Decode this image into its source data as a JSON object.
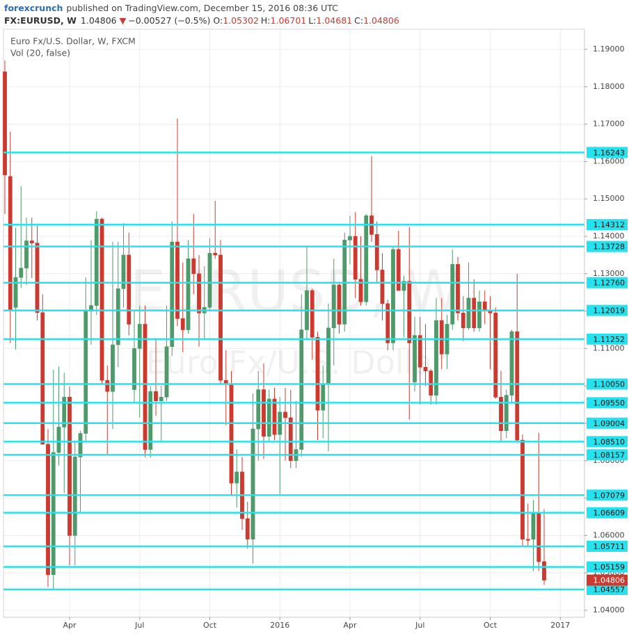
{
  "chart_data": {
    "type": "candlestick",
    "publisher": "forexcrunch",
    "published": "published on TradingView.com, December 15, 2016 08:36 UTC",
    "symbol": "FX:EURUSD, W",
    "change_arrow": "▼",
    "change": "−0.00527 (−0.5%)",
    "ohlc_labels": [
      "O:",
      "H:",
      "L:",
      "C:"
    ],
    "legend": [
      "Euro Fx/U.S. Dollar, W, FXCM",
      "Vol (20, false)"
    ],
    "watermark": [
      "EURUSD, W",
      "Euro Fx/U.S. Dollar"
    ],
    "up_color": "#4e9a6a",
    "down_color": "#cc3a2f",
    "level_color": "#26e2ee",
    "grid": true,
    "categories": [
      null,
      null,
      null,
      null,
      null,
      null,
      null,
      null,
      null,
      null,
      null,
      null,
      "Apr",
      null,
      null,
      null,
      null,
      null,
      null,
      null,
      null,
      null,
      null,
      null,
      null,
      "Jul",
      null,
      null,
      null,
      null,
      null,
      null,
      null,
      null,
      null,
      null,
      null,
      null,
      "Oct",
      null,
      null,
      null,
      null,
      null,
      null,
      null,
      null,
      null,
      null,
      null,
      null,
      "2016",
      null,
      null,
      null,
      null,
      null,
      null,
      null,
      null,
      null,
      null,
      null,
      null,
      "Apr",
      null,
      null,
      null,
      null,
      null,
      null,
      null,
      null,
      null,
      null,
      null,
      null,
      "Jul",
      null,
      null,
      null,
      null,
      null,
      null,
      null,
      null,
      null,
      null,
      null,
      null,
      "Oct",
      null,
      null,
      null,
      null,
      null,
      null,
      null,
      null,
      null,
      null,
      null,
      null,
      "2017"
    ],
    "open": [
      1.184,
      1.156,
      1.121,
      1.129,
      1.1315,
      1.1388,
      1.1382,
      1.1196,
      1.0844,
      1.0495,
      1.0822,
      1.089,
      1.097,
      1.06,
      1.081,
      1.0873,
      1.12,
      1.1215,
      1.1446,
      1.1015,
      1.0985,
      1.111,
      1.126,
      1.135,
      1.099,
      1.11,
      1.1165,
      1.083,
      1.0985,
      1.096,
      1.097,
      1.1105,
      1.1385,
      1.118,
      1.115,
      1.134,
      1.13,
      1.1195,
      1.121,
      1.1355,
      1.135,
      1.1015,
      1.1005,
      1.074,
      1.077,
      1.0645,
      1.059,
      1.0885,
      1.099,
      1.0865,
      1.0965,
      1.087,
      1.093,
      1.0915,
      1.08,
      1.083,
      1.115,
      1.1255,
      1.113,
      1.0935,
      1.1005,
      1.1155,
      1.127,
      1.1165,
      1.139,
      1.14,
      1.1285,
      1.1225,
      1.1455,
      1.1405,
      1.131,
      1.122,
      1.1115,
      1.1365,
      1.1255,
      1.128,
      1.101,
      1.1135,
      1.105,
      1.104,
      1.0975,
      1.1175,
      1.1085,
      1.1165,
      1.1325,
      1.1195,
      1.1155,
      1.1235,
      1.1155,
      1.1225,
      1.12,
      1.1195,
      1.097,
      1.088,
      1.0975,
      1.1145,
      1.0855,
      1.059,
      1.059,
      1.066,
      1.05302,
      null,
      null,
      null
    ],
    "high": [
      1.187,
      1.168,
      1.1423,
      1.1534,
      1.145,
      1.145,
      1.1428,
      1.1245,
      1.0885,
      1.1043,
      1.1052,
      1.1035,
      1.0998,
      1.0849,
      1.088,
      1.129,
      1.139,
      1.1467,
      1.145,
      1.1055,
      1.1385,
      1.1385,
      1.1435,
      1.141,
      1.12,
      1.1215,
      1.1215,
      1.1,
      1.1128,
      1.1,
      1.1215,
      1.144,
      1.1715,
      1.133,
      1.139,
      1.146,
      1.135,
      1.132,
      1.1395,
      1.1495,
      1.139,
      1.1095,
      1.104,
      1.083,
      1.081,
      1.069,
      1.098,
      1.104,
      1.106,
      1.099,
      1.0995,
      1.097,
      1.0995,
      1.099,
      1.096,
      1.1245,
      1.1375,
      1.126,
      1.1145,
      1.1055,
      1.122,
      1.134,
      1.1275,
      1.141,
      1.1455,
      1.1465,
      1.14,
      1.146,
      1.1615,
      1.144,
      1.1355,
      1.123,
      1.1375,
      1.1415,
      1.1295,
      1.1425,
      1.1185,
      1.1185,
      1.1165,
      1.1045,
      1.1235,
      1.1235,
      1.119,
      1.1365,
      1.1345,
      1.124,
      1.133,
      1.1285,
      1.1255,
      1.1255,
      1.124,
      1.121,
      1.104,
      1.099,
      1.115,
      1.13,
      1.087,
      1.0685,
      1.0695,
      1.0875,
      1.06701,
      null,
      null,
      null
    ],
    "low": [
      1.146,
      1.1115,
      1.1097,
      1.1262,
      1.127,
      1.1288,
      1.1175,
      1.0844,
      1.0462,
      1.0457,
      1.0787,
      1.0713,
      1.052,
      1.052,
      1.066,
      1.085,
      1.111,
      1.119,
      1.1005,
      1.0818,
      1.0885,
      1.105,
      1.121,
      1.1135,
      1.0955,
      1.0915,
      1.081,
      1.0808,
      1.092,
      1.085,
      1.096,
      1.108,
      1.116,
      1.109,
      1.114,
      1.1245,
      1.1105,
      1.1125,
      1.12,
      1.134,
      1.1005,
      1.0895,
      1.0705,
      1.0675,
      1.0615,
      1.0565,
      1.0525,
      1.08,
      1.0805,
      1.085,
      1.0855,
      1.071,
      1.08,
      1.078,
      1.078,
      1.081,
      1.1125,
      1.107,
      1.0855,
      1.086,
      1.0825,
      1.1055,
      1.114,
      1.1145,
      1.1325,
      1.1235,
      1.1215,
      1.1215,
      1.1385,
      1.1275,
      1.1175,
      1.1095,
      1.1095,
      1.1255,
      1.113,
      1.091,
      1.0985,
      1.095,
      1.1,
      1.095,
      1.095,
      1.1045,
      1.1045,
      1.115,
      1.1175,
      1.112,
      1.115,
      1.1145,
      1.1145,
      1.1165,
      1.1045,
      1.0965,
      1.085,
      1.086,
      1.0955,
      1.085,
      1.057,
      1.057,
      1.0505,
      1.0505,
      1.04681,
      null,
      null,
      null
    ],
    "close": [
      1.1564,
      1.1204,
      1.129,
      1.1315,
      1.1388,
      1.1382,
      1.1196,
      1.0844,
      1.0495,
      1.0822,
      1.089,
      1.097,
      1.06,
      1.081,
      1.0873,
      1.12,
      1.1215,
      1.1446,
      1.1015,
      1.0985,
      1.111,
      1.126,
      1.135,
      1.1165,
      1.11,
      1.1165,
      1.083,
      1.0985,
      1.096,
      1.097,
      1.1105,
      1.1385,
      1.118,
      1.115,
      1.134,
      1.13,
      1.1195,
      1.121,
      1.1355,
      1.135,
      1.1015,
      1.1005,
      1.074,
      1.077,
      1.0645,
      1.059,
      1.0885,
      1.099,
      1.0865,
      1.0965,
      1.087,
      1.093,
      1.0915,
      1.08,
      1.083,
      1.115,
      1.1255,
      1.113,
      1.0935,
      1.1005,
      1.1155,
      1.127,
      1.1165,
      1.139,
      1.14,
      1.1285,
      1.1225,
      1.1455,
      1.1405,
      1.131,
      1.122,
      1.1115,
      1.1365,
      1.1255,
      1.128,
      1.1115,
      1.1135,
      1.105,
      1.104,
      1.0975,
      1.1175,
      1.1085,
      1.1165,
      1.1325,
      1.1195,
      1.1155,
      1.1235,
      1.1155,
      1.1225,
      1.12,
      1.1195,
      1.097,
      1.088,
      1.0975,
      1.1145,
      1.0855,
      1.059,
      1.0587,
      1.066,
      1.053,
      1.04806,
      null,
      null,
      null
    ],
    "ylim": [
      1.03814,
      1.19539
    ],
    "yticks": [
      {
        "value": 1.19,
        "label": "1.19000"
      },
      {
        "value": 1.18,
        "label": "1.18000"
      },
      {
        "value": 1.17,
        "label": "1.17000"
      },
      {
        "value": 1.16,
        "label": "1.16000"
      },
      {
        "value": 1.15,
        "label": "1.15000"
      },
      {
        "value": 1.14,
        "label": "1.14000"
      },
      {
        "value": 1.13,
        "label": "1.13000"
      },
      {
        "value": 1.12,
        "label": "1.12000"
      },
      {
        "value": 1.11,
        "label": "1.11000"
      },
      {
        "value": 1.1,
        "label": "1.10000"
      },
      {
        "value": 1.09,
        "label": "1.09000"
      },
      {
        "value": 1.08,
        "label": "1.08000"
      },
      {
        "value": 1.07,
        "label": "1.07000"
      },
      {
        "value": 1.06,
        "label": "1.06000"
      },
      {
        "value": 1.05,
        "label": "1.05000"
      },
      {
        "value": 1.04,
        "label": "1.04000"
      }
    ],
    "levels": [
      1.16243,
      1.14312,
      1.13728,
      {
        "value": 1.1276,
        "label": "1.12760"
      },
      1.12019,
      1.11252,
      {
        "value": 1.1005,
        "label": "1.10050"
      },
      {
        "value": 1.0955,
        "label": "1.09550"
      },
      1.09004,
      {
        "value": 1.0851,
        "label": "1.08510"
      },
      1.08157,
      1.07079,
      1.06609,
      1.05711,
      1.05159,
      1.04557
    ]
  }
}
